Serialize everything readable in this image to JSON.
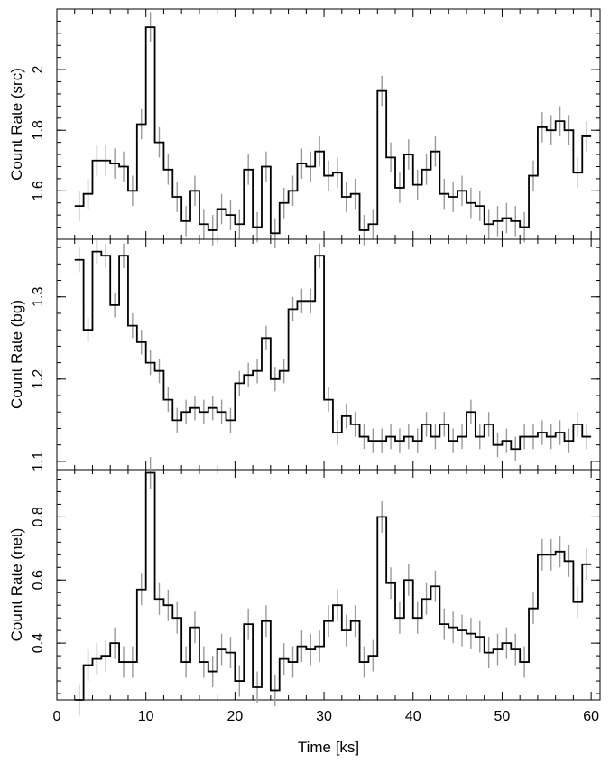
{
  "chart_data": [
    {
      "type": "line",
      "style": "step",
      "ylabel": "Count Rate (src)",
      "xlabel": "",
      "xlim": [
        0,
        61
      ],
      "ylim": [
        1.44,
        2.2
      ],
      "yticks": [
        1.6,
        1.8,
        2
      ],
      "ytick_labels": [
        "1.6",
        "1.8",
        "2"
      ],
      "bins": [
        [
          2,
          3
        ],
        [
          3,
          4
        ],
        [
          4,
          5
        ],
        [
          5,
          6
        ],
        [
          6,
          7
        ],
        [
          7,
          8
        ],
        [
          8,
          9
        ],
        [
          9,
          10
        ],
        [
          10,
          11
        ],
        [
          11,
          12
        ],
        [
          12,
          13
        ],
        [
          13,
          14
        ],
        [
          14,
          15
        ],
        [
          15,
          16
        ],
        [
          16,
          17
        ],
        [
          17,
          18
        ],
        [
          18,
          19
        ],
        [
          19,
          20
        ],
        [
          20,
          21
        ],
        [
          21,
          22
        ],
        [
          22,
          23
        ],
        [
          23,
          24
        ],
        [
          24,
          25
        ],
        [
          25,
          26
        ],
        [
          26,
          27
        ],
        [
          27,
          28
        ],
        [
          28,
          29
        ],
        [
          29,
          30
        ],
        [
          30,
          31
        ],
        [
          31,
          32
        ],
        [
          32,
          33
        ],
        [
          33,
          34
        ],
        [
          34,
          35
        ],
        [
          35,
          36
        ],
        [
          36,
          37
        ],
        [
          37,
          38
        ],
        [
          38,
          39
        ],
        [
          39,
          40
        ],
        [
          40,
          41
        ],
        [
          41,
          42
        ],
        [
          42,
          43
        ],
        [
          43,
          44
        ],
        [
          44,
          45
        ],
        [
          45,
          46
        ],
        [
          46,
          47
        ],
        [
          47,
          48
        ],
        [
          48,
          49
        ],
        [
          49,
          50
        ],
        [
          50,
          51
        ],
        [
          51,
          52
        ],
        [
          52,
          53
        ],
        [
          53,
          54
        ],
        [
          54,
          55
        ],
        [
          55,
          56
        ],
        [
          56,
          57
        ],
        [
          57,
          58
        ],
        [
          58,
          59
        ],
        [
          59,
          60
        ]
      ],
      "values": [
        1.55,
        1.59,
        1.7,
        1.7,
        1.69,
        1.68,
        1.6,
        1.82,
        2.14,
        1.76,
        1.67,
        1.58,
        1.5,
        1.6,
        1.49,
        1.47,
        1.54,
        1.52,
        1.49,
        1.67,
        1.48,
        1.68,
        1.46,
        1.56,
        1.6,
        1.69,
        1.68,
        1.73,
        1.65,
        1.66,
        1.58,
        1.59,
        1.47,
        1.49,
        1.93,
        1.71,
        1.61,
        1.72,
        1.62,
        1.67,
        1.73,
        1.59,
        1.58,
        1.6,
        1.56,
        1.55,
        1.49,
        1.5,
        1.51,
        1.5,
        1.48,
        1.65,
        1.81,
        1.8,
        1.83,
        1.8,
        1.66,
        1.78
      ],
      "errors": [
        0.05,
        0.05,
        0.05,
        0.05,
        0.05,
        0.05,
        0.05,
        0.05,
        0.05,
        0.05,
        0.05,
        0.05,
        0.05,
        0.05,
        0.05,
        0.05,
        0.05,
        0.05,
        0.05,
        0.05,
        0.05,
        0.05,
        0.05,
        0.05,
        0.05,
        0.05,
        0.05,
        0.05,
        0.05,
        0.05,
        0.05,
        0.05,
        0.05,
        0.05,
        0.05,
        0.05,
        0.05,
        0.05,
        0.05,
        0.05,
        0.05,
        0.05,
        0.05,
        0.05,
        0.05,
        0.05,
        0.05,
        0.05,
        0.05,
        0.05,
        0.05,
        0.05,
        0.05,
        0.05,
        0.05,
        0.05,
        0.05,
        0.05
      ]
    },
    {
      "type": "line",
      "style": "step",
      "ylabel": "Count Rate (bg)",
      "xlabel": "",
      "xlim": [
        0,
        61
      ],
      "ylim": [
        1.09,
        1.37
      ],
      "yticks": [
        1.1,
        1.2,
        1.3
      ],
      "ytick_labels": [
        "1.1",
        "1.2",
        "1.3"
      ],
      "bins": [
        [
          2,
          3
        ],
        [
          3,
          4
        ],
        [
          4,
          5
        ],
        [
          5,
          6
        ],
        [
          6,
          7
        ],
        [
          7,
          8
        ],
        [
          8,
          9
        ],
        [
          9,
          10
        ],
        [
          10,
          11
        ],
        [
          11,
          12
        ],
        [
          12,
          13
        ],
        [
          13,
          14
        ],
        [
          14,
          15
        ],
        [
          15,
          16
        ],
        [
          16,
          17
        ],
        [
          17,
          18
        ],
        [
          18,
          19
        ],
        [
          19,
          20
        ],
        [
          20,
          21
        ],
        [
          21,
          22
        ],
        [
          22,
          23
        ],
        [
          23,
          24
        ],
        [
          24,
          25
        ],
        [
          25,
          26
        ],
        [
          26,
          27
        ],
        [
          27,
          28
        ],
        [
          28,
          29
        ],
        [
          29,
          30
        ],
        [
          30,
          31
        ],
        [
          31,
          32
        ],
        [
          32,
          33
        ],
        [
          33,
          34
        ],
        [
          34,
          35
        ],
        [
          35,
          36
        ],
        [
          36,
          37
        ],
        [
          37,
          38
        ],
        [
          38,
          39
        ],
        [
          39,
          40
        ],
        [
          40,
          41
        ],
        [
          41,
          42
        ],
        [
          42,
          43
        ],
        [
          43,
          44
        ],
        [
          44,
          45
        ],
        [
          45,
          46
        ],
        [
          46,
          47
        ],
        [
          47,
          48
        ],
        [
          48,
          49
        ],
        [
          49,
          50
        ],
        [
          50,
          51
        ],
        [
          51,
          52
        ],
        [
          52,
          53
        ],
        [
          53,
          54
        ],
        [
          54,
          55
        ],
        [
          55,
          56
        ],
        [
          56,
          57
        ],
        [
          57,
          58
        ],
        [
          58,
          59
        ],
        [
          59,
          60
        ]
      ],
      "values": [
        1.345,
        1.26,
        1.355,
        1.35,
        1.29,
        1.35,
        1.265,
        1.245,
        1.22,
        1.21,
        1.175,
        1.15,
        1.16,
        1.165,
        1.16,
        1.165,
        1.16,
        1.15,
        1.195,
        1.205,
        1.21,
        1.25,
        1.2,
        1.21,
        1.285,
        1.295,
        1.295,
        1.35,
        1.175,
        1.135,
        1.155,
        1.145,
        1.13,
        1.125,
        1.125,
        1.13,
        1.125,
        1.13,
        1.125,
        1.145,
        1.13,
        1.145,
        1.125,
        1.13,
        1.16,
        1.13,
        1.145,
        1.12,
        1.125,
        1.115,
        1.13,
        1.13,
        1.135,
        1.13,
        1.135,
        1.125,
        1.145,
        1.13
      ],
      "errors": [
        0.015,
        0.015,
        0.015,
        0.015,
        0.015,
        0.015,
        0.015,
        0.015,
        0.015,
        0.015,
        0.015,
        0.015,
        0.015,
        0.015,
        0.015,
        0.015,
        0.015,
        0.015,
        0.015,
        0.015,
        0.015,
        0.015,
        0.015,
        0.015,
        0.015,
        0.015,
        0.015,
        0.015,
        0.015,
        0.015,
        0.015,
        0.015,
        0.015,
        0.015,
        0.015,
        0.015,
        0.015,
        0.015,
        0.015,
        0.015,
        0.015,
        0.015,
        0.015,
        0.015,
        0.015,
        0.015,
        0.015,
        0.015,
        0.015,
        0.015,
        0.015,
        0.015,
        0.015,
        0.015,
        0.015,
        0.015,
        0.015,
        0.015
      ]
    },
    {
      "type": "line",
      "style": "step",
      "ylabel": "Count Rate (net)",
      "xlabel": "Time [ks]",
      "xlim": [
        0,
        61
      ],
      "ylim": [
        0.22,
        0.95
      ],
      "yticks": [
        0.4,
        0.6,
        0.8
      ],
      "ytick_labels": [
        "0.4",
        "0.6",
        "0.8"
      ],
      "xticks": [
        0,
        10,
        20,
        30,
        40,
        50,
        60
      ],
      "xtick_labels": [
        "0",
        "10",
        "20",
        "30",
        "40",
        "50",
        "60"
      ],
      "bins": [
        [
          2,
          3
        ],
        [
          3,
          4
        ],
        [
          4,
          5
        ],
        [
          5,
          6
        ],
        [
          6,
          7
        ],
        [
          7,
          8
        ],
        [
          8,
          9
        ],
        [
          9,
          10
        ],
        [
          10,
          11
        ],
        [
          11,
          12
        ],
        [
          12,
          13
        ],
        [
          13,
          14
        ],
        [
          14,
          15
        ],
        [
          15,
          16
        ],
        [
          16,
          17
        ],
        [
          17,
          18
        ],
        [
          18,
          19
        ],
        [
          19,
          20
        ],
        [
          20,
          21
        ],
        [
          21,
          22
        ],
        [
          22,
          23
        ],
        [
          23,
          24
        ],
        [
          24,
          25
        ],
        [
          25,
          26
        ],
        [
          26,
          27
        ],
        [
          27,
          28
        ],
        [
          28,
          29
        ],
        [
          29,
          30
        ],
        [
          30,
          31
        ],
        [
          31,
          32
        ],
        [
          32,
          33
        ],
        [
          33,
          34
        ],
        [
          34,
          35
        ],
        [
          35,
          36
        ],
        [
          36,
          37
        ],
        [
          37,
          38
        ],
        [
          38,
          39
        ],
        [
          39,
          40
        ],
        [
          40,
          41
        ],
        [
          41,
          42
        ],
        [
          42,
          43
        ],
        [
          43,
          44
        ],
        [
          44,
          45
        ],
        [
          45,
          46
        ],
        [
          46,
          47
        ],
        [
          47,
          48
        ],
        [
          48,
          49
        ],
        [
          49,
          50
        ],
        [
          50,
          51
        ],
        [
          51,
          52
        ],
        [
          52,
          53
        ],
        [
          53,
          54
        ],
        [
          54,
          55
        ],
        [
          55,
          56
        ],
        [
          56,
          57
        ],
        [
          57,
          58
        ],
        [
          58,
          59
        ],
        [
          59,
          60
        ]
      ],
      "values": [
        0.22,
        0.33,
        0.35,
        0.36,
        0.4,
        0.34,
        0.34,
        0.57,
        0.94,
        0.54,
        0.52,
        0.48,
        0.34,
        0.45,
        0.34,
        0.31,
        0.38,
        0.37,
        0.28,
        0.46,
        0.26,
        0.47,
        0.25,
        0.35,
        0.34,
        0.39,
        0.38,
        0.39,
        0.47,
        0.52,
        0.44,
        0.47,
        0.34,
        0.36,
        0.8,
        0.59,
        0.48,
        0.6,
        0.48,
        0.54,
        0.58,
        0.46,
        0.45,
        0.44,
        0.43,
        0.42,
        0.37,
        0.38,
        0.4,
        0.38,
        0.34,
        0.51,
        0.68,
        0.68,
        0.69,
        0.66,
        0.53,
        0.65
      ],
      "errors": [
        0.05,
        0.05,
        0.05,
        0.05,
        0.05,
        0.05,
        0.05,
        0.05,
        0.05,
        0.05,
        0.05,
        0.05,
        0.05,
        0.05,
        0.05,
        0.05,
        0.05,
        0.05,
        0.05,
        0.05,
        0.05,
        0.05,
        0.05,
        0.05,
        0.05,
        0.05,
        0.05,
        0.05,
        0.05,
        0.05,
        0.05,
        0.05,
        0.05,
        0.05,
        0.05,
        0.05,
        0.05,
        0.05,
        0.05,
        0.05,
        0.05,
        0.05,
        0.05,
        0.05,
        0.05,
        0.05,
        0.05,
        0.05,
        0.05,
        0.05,
        0.05,
        0.05,
        0.05,
        0.05,
        0.05,
        0.05,
        0.05,
        0.05
      ]
    }
  ]
}
